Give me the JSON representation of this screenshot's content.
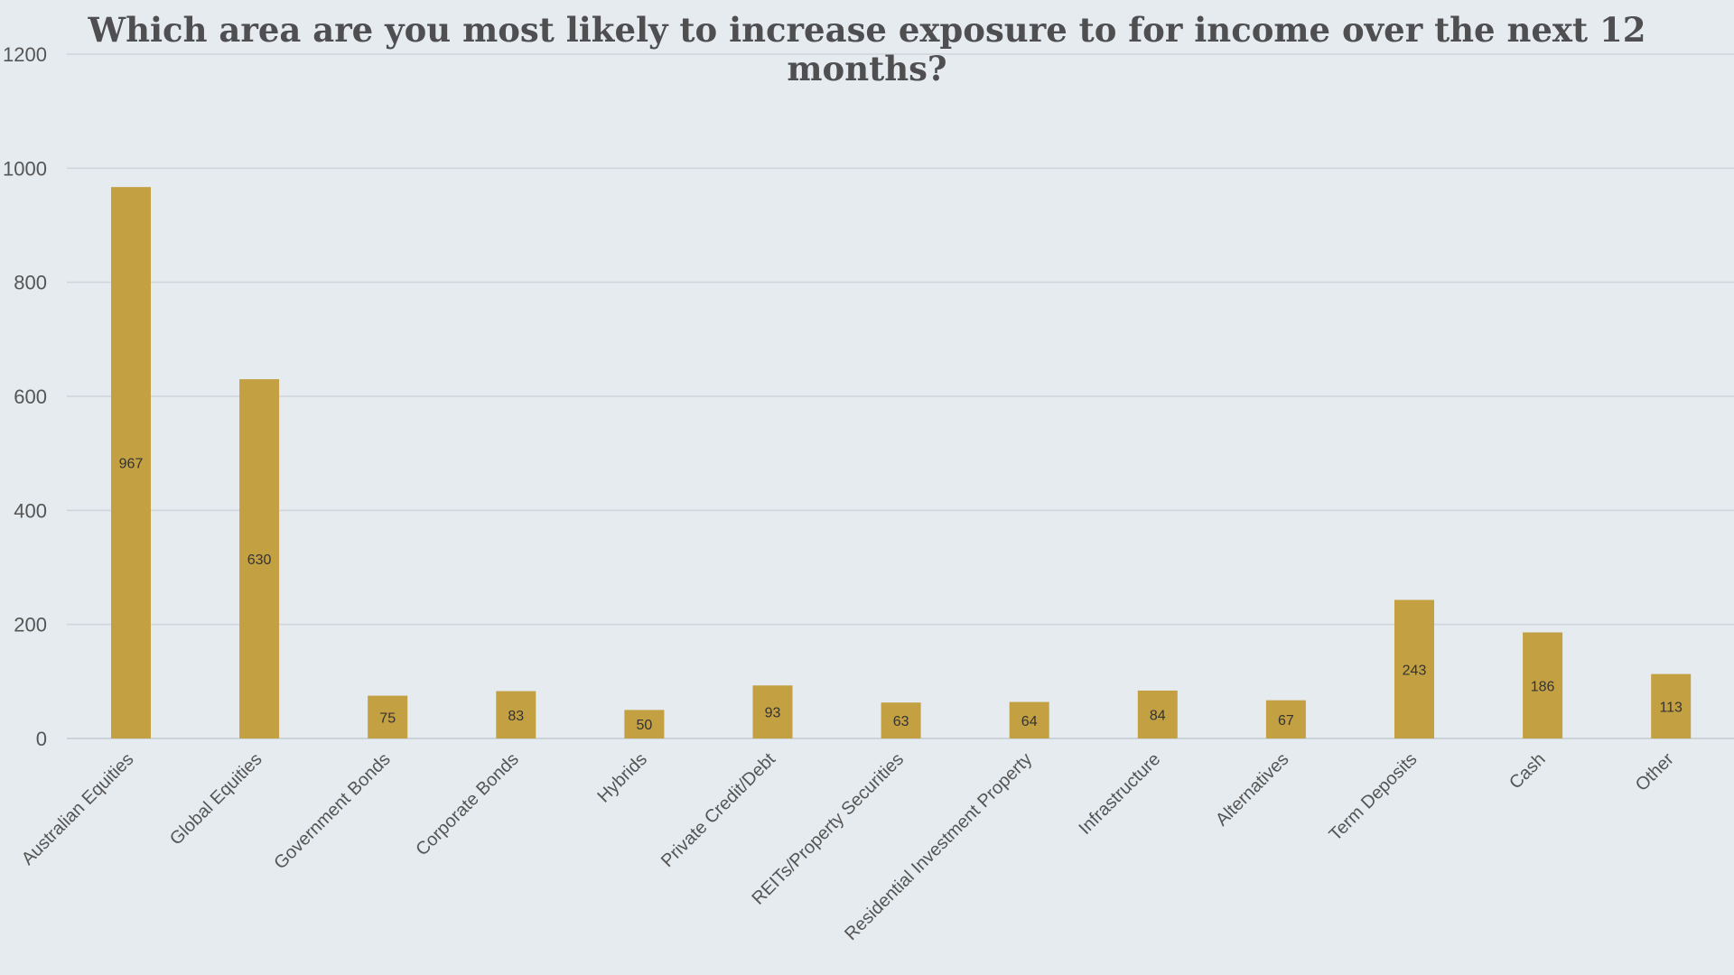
{
  "chart_data": {
    "type": "bar",
    "title_lines": [
      "Which area are you most likely to increase exposure to for income over the next 12",
      "months?"
    ],
    "categories": [
      "Australian Equities",
      "Global Equities",
      "Government Bonds",
      "Corporate Bonds",
      "Hybrids",
      "Private Credit/Debt",
      "REITs/Property Securities",
      "Residential Investment Property",
      "Infrastructure",
      "Alternatives",
      "Term Deposits",
      "Cash",
      "Other"
    ],
    "values": [
      967,
      630,
      75,
      83,
      50,
      93,
      63,
      64,
      84,
      67,
      243,
      186,
      113
    ],
    "ylim": [
      0,
      1200
    ],
    "yticks": [
      0,
      200,
      400,
      600,
      800,
      1000,
      1200
    ],
    "xlabel": "",
    "ylabel": "",
    "grid": true,
    "legend": "none",
    "bar_color": "#c3a042"
  }
}
